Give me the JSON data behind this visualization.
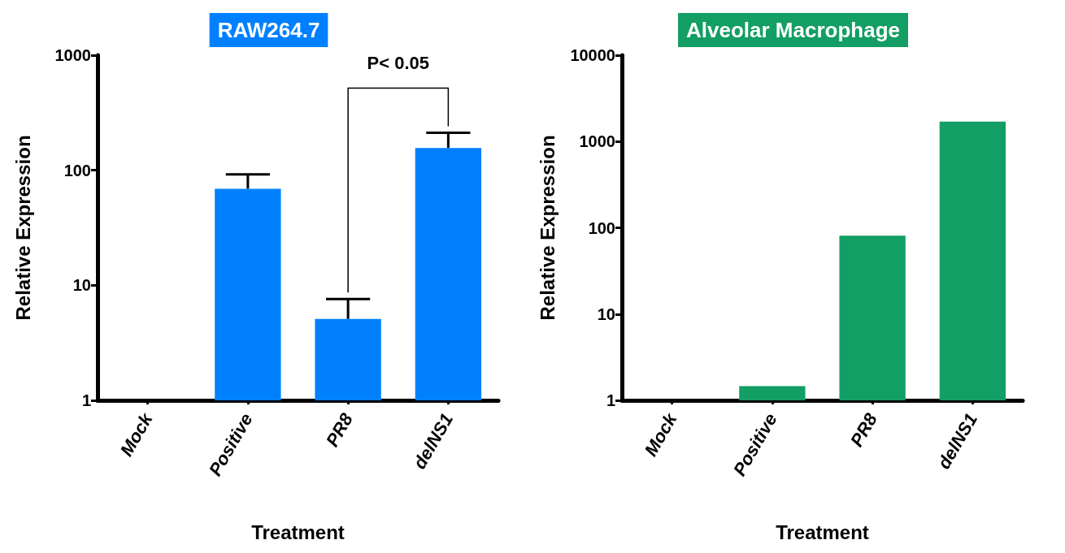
{
  "chart_data": [
    {
      "type": "bar",
      "title": "RAW264.7",
      "xlabel": "Treatment",
      "ylabel": "Relative Expression",
      "categories": [
        "Mock",
        "Positive",
        "PR8",
        "delNS1"
      ],
      "color": "#0080ff",
      "values": [
        1,
        69,
        5.1,
        156
      ],
      "errors": [
        null,
        [
          69,
          92
        ],
        [
          5.1,
          7.6
        ],
        [
          156,
          212
        ]
      ],
      "log": "y",
      "ylim": [
        1,
        1000
      ],
      "yticks": [
        1,
        10,
        100,
        1000
      ],
      "grid": false,
      "annotations": [
        "P< 0.05"
      ]
    },
    {
      "type": "bar",
      "title": "Alveolar Macrophage",
      "xlabel": "Treatment",
      "ylabel": "Relative Expression",
      "categories": [
        "Mock",
        "Positive",
        "PR8",
        "delNS1"
      ],
      "color": "#129e64",
      "values": [
        1,
        1.46,
        81,
        1700
      ],
      "log": "y",
      "ylim": [
        1,
        10000
      ],
      "yticks": [
        1,
        10,
        100,
        1000,
        10000
      ],
      "grid": false
    }
  ]
}
